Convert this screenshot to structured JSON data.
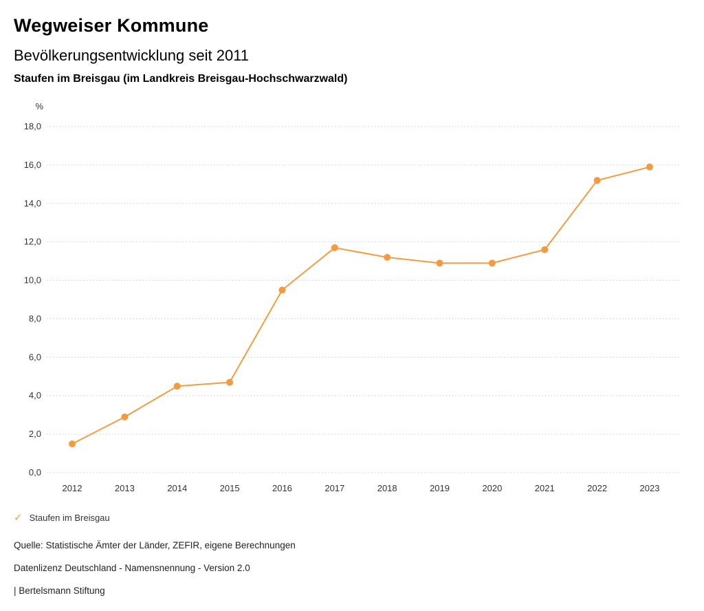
{
  "header": {
    "title": "Wegweiser Kommune",
    "subtitle": "Bevölkerungsentwicklung seit 2011",
    "location": "Staufen im Breisgau (im Landkreis Breisgau-Hochschwarzwald)"
  },
  "chart_data": {
    "type": "line",
    "title": "Bevölkerungsentwicklung seit 2011",
    "unit_label": "%",
    "x": [
      2012,
      2013,
      2014,
      2015,
      2016,
      2017,
      2018,
      2019,
      2020,
      2021,
      2022,
      2023
    ],
    "series": [
      {
        "name": "Staufen im Breisgau",
        "values": [
          1.5,
          2.9,
          4.5,
          4.7,
          9.5,
          11.7,
          11.2,
          10.9,
          10.9,
          11.6,
          15.2,
          15.9
        ],
        "color": "#f49b42"
      }
    ],
    "ylim": [
      0,
      18
    ],
    "ytick_step": 2,
    "ytick_labels": [
      "0,0",
      "2,0",
      "4,0",
      "6,0",
      "8,0",
      "10,0",
      "12,0",
      "14,0",
      "16,0",
      "18,0"
    ],
    "grid": "horizontal-dotted",
    "grid_color": "#cccccc",
    "legend_position": "bottom-left"
  },
  "legend": {
    "check_icon": "✓",
    "label": "Staufen im Breisgau",
    "color": "#f49b42"
  },
  "footer": {
    "source": "Quelle: Statistische Ämter der Länder, ZEFIR, eigene Berechnungen",
    "license": "Datenlizenz Deutschland - Namensnennung - Version 2.0",
    "publisher": "| Bertelsmann Stiftung"
  }
}
